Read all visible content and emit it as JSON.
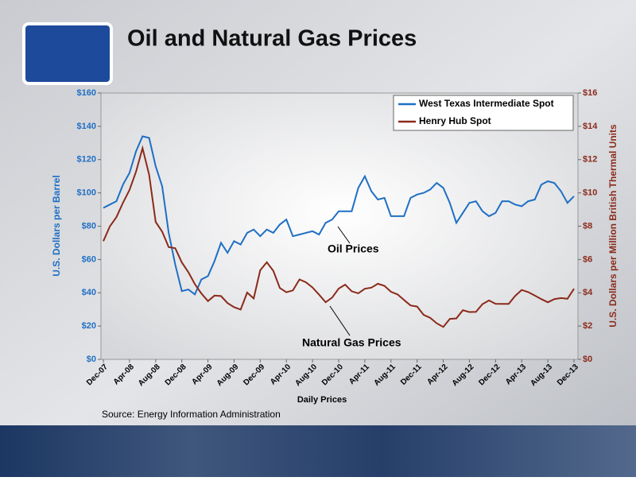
{
  "chart_data": {
    "type": "line",
    "title": "Oil and Natural Gas Prices",
    "xlabel": "Daily Prices",
    "ylabel": "U.S. Dollars per Barrel",
    "y2label": "U.S. Dollars per Million British Thermal Units",
    "source": "Source:  Energy Information Administration",
    "annotations": [
      {
        "text": "Oil Prices"
      },
      {
        "text": "Natural Gas Prices"
      }
    ],
    "legend": "upper right",
    "x": [
      "Dec-07",
      "Jan-08",
      "Feb-08",
      "Mar-08",
      "Apr-08",
      "May-08",
      "Jun-08",
      "Jul-08",
      "Aug-08",
      "Sep-08",
      "Oct-08",
      "Nov-08",
      "Dec-08",
      "Jan-09",
      "Feb-09",
      "Mar-09",
      "Apr-09",
      "May-09",
      "Jun-09",
      "Jul-09",
      "Aug-09",
      "Sep-09",
      "Oct-09",
      "Nov-09",
      "Dec-09",
      "Jan-10",
      "Feb-10",
      "Mar-10",
      "Apr-10",
      "May-10",
      "Jun-10",
      "Jul-10",
      "Aug-10",
      "Sep-10",
      "Oct-10",
      "Nov-10",
      "Dec-10",
      "Jan-11",
      "Feb-11",
      "Mar-11",
      "Apr-11",
      "May-11",
      "Jun-11",
      "Jul-11",
      "Aug-11",
      "Sep-11",
      "Oct-11",
      "Nov-11",
      "Dec-11",
      "Jan-12",
      "Feb-12",
      "Mar-12",
      "Apr-12",
      "May-12",
      "Jun-12",
      "Jul-12",
      "Aug-12",
      "Sep-12",
      "Oct-12",
      "Nov-12",
      "Dec-12",
      "Jan-13",
      "Feb-13",
      "Mar-13",
      "Apr-13",
      "May-13",
      "Jun-13",
      "Jul-13",
      "Aug-13",
      "Sep-13",
      "Oct-13",
      "Nov-13",
      "Dec-13"
    ],
    "xticks": [
      "Dec-07",
      "Apr-08",
      "Aug-08",
      "Dec-08",
      "Apr-09",
      "Aug-09",
      "Dec-09",
      "Apr-10",
      "Aug-10",
      "Dec-10",
      "Apr-11",
      "Aug-11",
      "Dec-11",
      "Apr-12",
      "Aug-12",
      "Dec-12",
      "Apr-13",
      "Aug-13",
      "Dec-13"
    ],
    "series": [
      {
        "name": "West Texas Intermediate Spot",
        "color": "#1f6fc4",
        "axis": "y",
        "values": [
          91,
          93,
          95,
          105,
          112,
          125,
          134,
          133,
          116,
          104,
          76,
          57,
          41,
          42,
          39,
          48,
          50,
          59,
          70,
          64,
          71,
          69,
          76,
          78,
          74,
          78,
          76,
          81,
          84,
          74,
          75,
          76,
          77,
          75,
          82,
          84,
          89,
          89,
          89,
          103,
          110,
          101,
          96,
          97,
          86,
          86,
          86,
          97,
          99,
          100,
          102,
          106,
          103,
          94,
          82,
          88,
          94,
          95,
          89,
          86,
          88,
          95,
          95,
          93,
          92,
          95,
          96,
          105,
          107,
          106,
          101,
          94,
          98
        ]
      },
      {
        "name": "Henry Hub Spot",
        "color": "#8b2a1a",
        "axis": "y2",
        "values": [
          7.1,
          7.99,
          8.54,
          9.41,
          10.18,
          11.27,
          12.69,
          11.09,
          8.26,
          7.67,
          6.74,
          6.68,
          5.82,
          5.24,
          4.52,
          3.96,
          3.5,
          3.83,
          3.8,
          3.38,
          3.14,
          2.99,
          4.01,
          3.66,
          5.35,
          5.83,
          5.32,
          4.29,
          4.03,
          4.14,
          4.8,
          4.63,
          4.32,
          3.89,
          3.43,
          3.71,
          4.25,
          4.49,
          4.09,
          3.97,
          4.24,
          4.31,
          4.54,
          4.42,
          4.06,
          3.9,
          3.57,
          3.24,
          3.17,
          2.67,
          2.5,
          2.17,
          1.95,
          2.43,
          2.46,
          2.95,
          2.84,
          2.85,
          3.32,
          3.54,
          3.34,
          3.33,
          3.33,
          3.81,
          4.17,
          4.04,
          3.83,
          3.62,
          3.43,
          3.62,
          3.68,
          3.64,
          4.24
        ]
      }
    ],
    "ylim": [
      0,
      160
    ],
    "yticks": [
      {
        "value": 0,
        "label": "$0"
      },
      {
        "value": 20,
        "label": "$20"
      },
      {
        "value": 40,
        "label": "$40"
      },
      {
        "value": 60,
        "label": "$60"
      },
      {
        "value": 80,
        "label": "$80"
      },
      {
        "value": 100,
        "label": "$100"
      },
      {
        "value": 120,
        "label": "$120"
      },
      {
        "value": 140,
        "label": "$140"
      },
      {
        "value": 160,
        "label": "$160"
      }
    ],
    "y2lim": [
      0,
      16
    ],
    "y2ticks": [
      {
        "value": 0,
        "label": "$0"
      },
      {
        "value": 2,
        "label": "$2"
      },
      {
        "value": 4,
        "label": "$4"
      },
      {
        "value": 6,
        "label": "$6"
      },
      {
        "value": 8,
        "label": "$8"
      },
      {
        "value": 10,
        "label": "$10"
      },
      {
        "value": 12,
        "label": "$12"
      },
      {
        "value": 14,
        "label": "$14"
      },
      {
        "value": 16,
        "label": "$16"
      }
    ]
  }
}
